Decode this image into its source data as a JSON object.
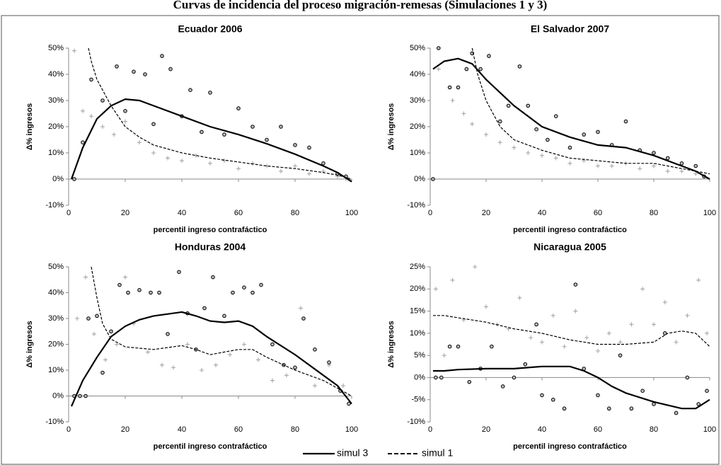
{
  "title": "Curvas de incidencia del proceso migración-remesas (Simulaciones 1 y 3)",
  "legend": {
    "position": "bottom",
    "entries": [
      {
        "name": "simul 3",
        "style": "solid",
        "color": "#000000"
      },
      {
        "name": "simul 1",
        "style": "dashed",
        "color": "#000000"
      }
    ]
  },
  "chart_data": [
    {
      "type": "scatter",
      "title": "Ecuador 2006",
      "x_label": "percentil ingreso contrafáctico",
      "y_label": "Δ% ingresos",
      "xlim": [
        0,
        100
      ],
      "xticks": [
        0,
        20,
        40,
        60,
        80,
        100
      ],
      "ylim": [
        -10,
        50
      ],
      "yticks": [
        {
          "value": -10,
          "label": "-10%"
        },
        {
          "value": 0,
          "label": "0%"
        },
        {
          "value": 10,
          "label": "10%"
        },
        {
          "value": 20,
          "label": "20%"
        },
        {
          "value": 30,
          "label": "30%"
        },
        {
          "value": 40,
          "label": "40%"
        },
        {
          "value": 50,
          "label": "50%"
        }
      ],
      "series": [
        {
          "style": "plus",
          "color": "#a6a6a6",
          "x": [
            2,
            5,
            8,
            12,
            16,
            20,
            25,
            30,
            35,
            40,
            45,
            50,
            55,
            60,
            65,
            70,
            75,
            80,
            85,
            90,
            95,
            98
          ],
          "values": [
            49,
            26,
            24,
            20,
            17,
            22,
            14,
            10,
            8,
            7,
            9,
            6,
            7,
            4,
            6,
            5,
            3,
            5,
            2,
            3,
            1,
            0
          ]
        },
        {
          "style": "circle",
          "color": "#000000",
          "x": [
            2,
            5,
            8,
            12,
            17,
            20,
            23,
            27,
            30,
            33,
            36,
            40,
            43,
            47,
            50,
            55,
            60,
            65,
            70,
            75,
            80,
            85,
            90,
            95,
            98
          ],
          "values": [
            0,
            14,
            38,
            30,
            43,
            26,
            41,
            40,
            21,
            47,
            42,
            24,
            34,
            18,
            33,
            17,
            27,
            20,
            15,
            20,
            13,
            12,
            6,
            2,
            1
          ]
        },
        {
          "style": "solid",
          "color": "#000000",
          "x": [
            1,
            5,
            10,
            15,
            20,
            25,
            30,
            40,
            50,
            60,
            70,
            80,
            90,
            95,
            100
          ],
          "values": [
            0,
            12,
            23,
            28,
            30.5,
            30,
            28,
            24,
            20,
            17,
            13.5,
            9.5,
            5,
            2.5,
            -1
          ]
        },
        {
          "style": "dashed",
          "color": "#000000",
          "x": [
            7,
            8,
            10,
            15,
            20,
            25,
            30,
            40,
            50,
            60,
            70,
            80,
            90,
            95,
            100
          ],
          "values": [
            50,
            45,
            38,
            28,
            20,
            16,
            13,
            10,
            8,
            6.5,
            5,
            4,
            2.5,
            1.5,
            0
          ]
        }
      ]
    },
    {
      "type": "scatter",
      "title": "El Salvador 2007",
      "x_label": "percentil ingreso contrafáctico",
      "y_label": "Δ% ingresos",
      "xlim": [
        0,
        100
      ],
      "xticks": [
        0,
        20,
        40,
        60,
        80,
        100
      ],
      "ylim": [
        -10,
        50
      ],
      "yticks": [
        {
          "value": -10,
          "label": "-10%"
        },
        {
          "value": 0,
          "label": "0%"
        },
        {
          "value": 10,
          "label": "10%"
        },
        {
          "value": 20,
          "label": "20%"
        },
        {
          "value": 30,
          "label": "30%"
        },
        {
          "value": 40,
          "label": "40%"
        },
        {
          "value": 50,
          "label": "50%"
        }
      ],
      "series": [
        {
          "style": "plus",
          "color": "#a6a6a6",
          "x": [
            3,
            8,
            12,
            15,
            20,
            25,
            30,
            35,
            40,
            45,
            50,
            55,
            60,
            65,
            70,
            75,
            80,
            85,
            90,
            95
          ],
          "values": [
            42,
            30,
            25,
            21,
            17,
            14,
            12,
            10,
            9,
            8,
            6,
            7,
            5,
            5,
            6,
            4,
            5,
            3,
            3,
            2
          ]
        },
        {
          "style": "circle",
          "color": "#000000",
          "x": [
            1,
            3,
            7,
            10,
            13,
            15,
            18,
            21,
            25,
            28,
            32,
            35,
            38,
            42,
            45,
            50,
            55,
            60,
            65,
            70,
            75,
            80,
            85,
            90,
            95,
            98
          ],
          "values": [
            0,
            50,
            35,
            35,
            42,
            48,
            42,
            47,
            22,
            28,
            43,
            28,
            19,
            15,
            24,
            12,
            17,
            18,
            13,
            22,
            11,
            10,
            8,
            6,
            5,
            1
          ]
        },
        {
          "style": "solid",
          "color": "#000000",
          "x": [
            1,
            5,
            10,
            15,
            20,
            25,
            30,
            40,
            50,
            60,
            70,
            80,
            90,
            95,
            100
          ],
          "values": [
            42,
            45,
            46,
            44,
            38,
            33,
            28,
            20,
            16,
            13,
            12,
            9,
            5,
            3,
            0
          ]
        },
        {
          "style": "dashed",
          "color": "#000000",
          "x": [
            15,
            17,
            20,
            25,
            30,
            40,
            50,
            60,
            70,
            80,
            90,
            95,
            100
          ],
          "values": [
            50,
            40,
            30,
            20,
            15,
            11,
            8,
            7,
            6,
            6,
            4,
            3,
            2
          ]
        }
      ]
    },
    {
      "type": "scatter",
      "title": "Honduras 2004",
      "x_label": "percentil ingreso contrafáctico",
      "y_label": "Δ% ingresos",
      "xlim": [
        0,
        100
      ],
      "xticks": [
        0,
        20,
        40,
        60,
        80,
        100
      ],
      "ylim": [
        -10,
        50
      ],
      "yticks": [
        {
          "value": -10,
          "label": "-10%"
        },
        {
          "value": 0,
          "label": "0%"
        },
        {
          "value": 10,
          "label": "10%"
        },
        {
          "value": 20,
          "label": "20%"
        },
        {
          "value": 30,
          "label": "30%"
        },
        {
          "value": 40,
          "label": "40%"
        },
        {
          "value": 50,
          "label": "50%"
        }
      ],
      "series": [
        {
          "style": "plus",
          "color": "#a6a6a6",
          "x": [
            3,
            6,
            9,
            13,
            17,
            20,
            23,
            28,
            33,
            37,
            42,
            47,
            52,
            57,
            62,
            67,
            72,
            77,
            82,
            87,
            92,
            97
          ],
          "values": [
            30,
            46,
            24,
            14,
            20,
            46,
            28,
            17,
            12,
            11,
            20,
            10,
            12,
            16,
            20,
            14,
            6,
            8,
            34,
            4,
            12,
            4
          ]
        },
        {
          "style": "circle",
          "color": "#000000",
          "x": [
            2,
            4,
            6,
            7,
            10,
            12,
            15,
            18,
            21,
            25,
            29,
            32,
            35,
            39,
            42,
            45,
            48,
            51,
            55,
            58,
            62,
            65,
            68,
            72,
            76,
            80,
            83,
            87,
            92,
            96,
            99
          ],
          "values": [
            0,
            0,
            0,
            30,
            31,
            9,
            25,
            43,
            40,
            41,
            40,
            40,
            24,
            48,
            32,
            18,
            34,
            46,
            31,
            40,
            42,
            40,
            43,
            20,
            12,
            11,
            30,
            18,
            13,
            2,
            -3
          ]
        },
        {
          "style": "solid",
          "color": "#000000",
          "x": [
            1,
            5,
            10,
            15,
            20,
            25,
            30,
            40,
            45,
            50,
            55,
            60,
            65,
            70,
            80,
            90,
            95,
            100
          ],
          "values": [
            -4,
            6,
            15,
            23,
            27,
            29.5,
            31,
            32.5,
            31,
            29,
            28.5,
            29,
            27,
            23,
            16,
            8,
            4,
            -3
          ]
        },
        {
          "style": "dashed",
          "color": "#000000",
          "x": [
            8,
            10,
            12,
            15,
            20,
            30,
            40,
            45,
            50,
            55,
            60,
            65,
            70,
            80,
            90,
            95,
            100
          ],
          "values": [
            50,
            38,
            28,
            22,
            19,
            18,
            19.5,
            18,
            16,
            17,
            18,
            18,
            15,
            10,
            6,
            3,
            0
          ]
        }
      ]
    },
    {
      "type": "scatter",
      "title": "Nicaragua  2005",
      "x_label": "percentil ingreso contrafáctico",
      "y_label": "Δ% ingresos",
      "xlim": [
        0,
        100
      ],
      "xticks": [
        0,
        20,
        40,
        60,
        80,
        100
      ],
      "ylim": [
        -10,
        25
      ],
      "yticks": [
        {
          "value": -10,
          "label": "-10%"
        },
        {
          "value": -5,
          "label": "-5%"
        },
        {
          "value": 0,
          "label": "0%"
        },
        {
          "value": 5,
          "label": "5%"
        },
        {
          "value": 10,
          "label": "10%"
        },
        {
          "value": 15,
          "label": "15%"
        },
        {
          "value": 20,
          "label": "20%"
        },
        {
          "value": 25,
          "label": "25%"
        }
      ],
      "series": [
        {
          "style": "plus",
          "color": "#a6a6a6",
          "x": [
            2,
            5,
            8,
            12,
            16,
            20,
            24,
            28,
            32,
            36,
            40,
            44,
            48,
            52,
            56,
            60,
            64,
            68,
            72,
            76,
            80,
            84,
            88,
            92,
            96,
            99
          ],
          "values": [
            20,
            5,
            22,
            13,
            25,
            16,
            12,
            11,
            18,
            9,
            8,
            14,
            7,
            15,
            9,
            6,
            10,
            8,
            12,
            20,
            12,
            17,
            8,
            14,
            22,
            10
          ]
        },
        {
          "style": "circle",
          "color": "#000000",
          "x": [
            2,
            4,
            7,
            10,
            14,
            18,
            22,
            26,
            30,
            34,
            38,
            40,
            44,
            48,
            52,
            55,
            60,
            64,
            68,
            72,
            76,
            80,
            84,
            88,
            92,
            96,
            99
          ],
          "values": [
            0,
            0,
            7,
            7,
            -1,
            2,
            7,
            -2,
            0,
            3,
            12,
            -4,
            -5,
            -7,
            21,
            2,
            -4,
            -7,
            5,
            -7,
            -3,
            -6,
            10,
            -8,
            0,
            -6,
            -3
          ]
        },
        {
          "style": "solid",
          "color": "#000000",
          "x": [
            1,
            5,
            10,
            20,
            30,
            40,
            50,
            55,
            60,
            65,
            70,
            80,
            90,
            95,
            100
          ],
          "values": [
            1.5,
            1.5,
            1.8,
            2,
            2,
            2.5,
            2.5,
            1.5,
            0,
            -2,
            -3.5,
            -5.5,
            -7,
            -7,
            -5
          ]
        },
        {
          "style": "dashed",
          "color": "#000000",
          "x": [
            1,
            5,
            10,
            20,
            30,
            40,
            50,
            60,
            70,
            80,
            85,
            90,
            95,
            100
          ],
          "values": [
            14,
            14,
            13.5,
            12.5,
            11,
            10,
            8.5,
            7.5,
            7.5,
            8,
            10,
            10.5,
            10,
            7
          ]
        }
      ]
    }
  ]
}
